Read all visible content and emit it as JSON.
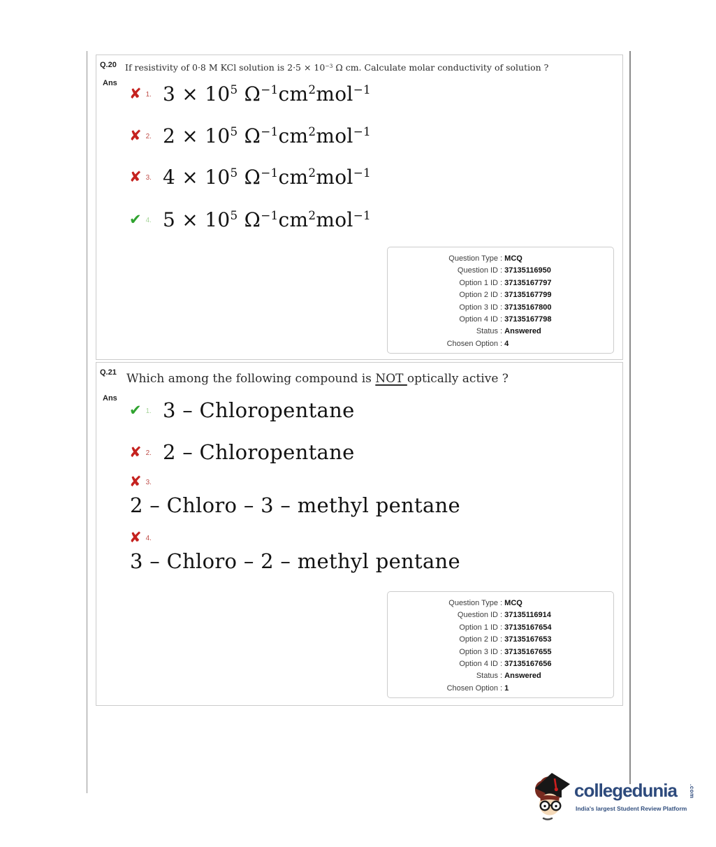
{
  "marks": {
    "wrong": "✘",
    "correct": "✔"
  },
  "colors": {
    "wrong_red": "#c5221f",
    "correct_green": "#2fa32f",
    "brand_navy": "#2d4a7c",
    "box_border": "#cbcbcb"
  },
  "questions": [
    {
      "number": "Q.20",
      "ans_label": "Ans",
      "text_segments": [
        {
          "t": "If resistivity of 0·8 M KCl solution is 2·5 × 10"
        },
        {
          "sup": "−3"
        },
        {
          "t": " Ω cm. Calculate molar conductivity of solution ?"
        }
      ],
      "options": [
        {
          "num": "1.",
          "mark": "wrong",
          "segments": [
            {
              "t": "3 × 10"
            },
            {
              "sup": "5"
            },
            {
              "t": " Ω"
            },
            {
              "sup": "−1"
            },
            {
              "t": "cm"
            },
            {
              "sup": "2"
            },
            {
              "t": "mol"
            },
            {
              "sup": "−1"
            }
          ]
        },
        {
          "num": "2.",
          "mark": "wrong",
          "segments": [
            {
              "t": "2 × 10"
            },
            {
              "sup": "5"
            },
            {
              "t": " Ω"
            },
            {
              "sup": "−1"
            },
            {
              "t": "cm"
            },
            {
              "sup": "2"
            },
            {
              "t": "mol"
            },
            {
              "sup": "−1"
            }
          ]
        },
        {
          "num": "3.",
          "mark": "wrong",
          "segments": [
            {
              "t": "4 × 10"
            },
            {
              "sup": "5"
            },
            {
              "t": " Ω"
            },
            {
              "sup": "−1"
            },
            {
              "t": "cm"
            },
            {
              "sup": "2"
            },
            {
              "t": "mol"
            },
            {
              "sup": "−1"
            }
          ]
        },
        {
          "num": "4.",
          "mark": "correct",
          "segments": [
            {
              "t": "5 × 10"
            },
            {
              "sup": "5"
            },
            {
              "t": " Ω"
            },
            {
              "sup": "−1"
            },
            {
              "t": "cm"
            },
            {
              "sup": "2"
            },
            {
              "t": "mol"
            },
            {
              "sup": "−1"
            }
          ]
        }
      ],
      "meta": [
        {
          "label": "Question Type",
          "value": "MCQ"
        },
        {
          "label": "Question ID",
          "value": "37135116950"
        },
        {
          "label": "Option 1 ID",
          "value": "37135167797"
        },
        {
          "label": "Option 2 ID",
          "value": "37135167799"
        },
        {
          "label": "Option 3 ID",
          "value": "37135167800"
        },
        {
          "label": "Option 4 ID",
          "value": "37135167798"
        },
        {
          "label": "Status",
          "value": "Answered"
        },
        {
          "label": "Chosen Option",
          "value": "4"
        }
      ]
    },
    {
      "number": "Q.21",
      "ans_label": "Ans",
      "text_segments": [
        {
          "t": "Which among the following compound is "
        },
        {
          "u": "NOT "
        },
        {
          "t": "optically active ?"
        }
      ],
      "options": [
        {
          "num": "1.",
          "mark": "correct",
          "segments": [
            {
              "t": "3 – Chloropentane"
            }
          ]
        },
        {
          "num": "2.",
          "mark": "wrong",
          "segments": [
            {
              "t": "2 – Chloropentane"
            }
          ]
        },
        {
          "num": "3.",
          "mark": "wrong",
          "segments": [
            {
              "t": "2 – Chloro – 3 – methyl pentane"
            }
          ]
        },
        {
          "num": "4.",
          "mark": "wrong",
          "segments": [
            {
              "t": "3 – Chloro – 2 – methyl pentane"
            }
          ]
        }
      ],
      "meta": [
        {
          "label": "Question Type",
          "value": "MCQ"
        },
        {
          "label": "Question ID",
          "value": "37135116914"
        },
        {
          "label": "Option 1 ID",
          "value": "37135167654"
        },
        {
          "label": "Option 2 ID",
          "value": "37135167653"
        },
        {
          "label": "Option 3 ID",
          "value": "37135167655"
        },
        {
          "label": "Option 4 ID",
          "value": "37135167656"
        },
        {
          "label": "Status",
          "value": "Answered"
        },
        {
          "label": "Chosen Option",
          "value": "1"
        }
      ]
    }
  ],
  "meta_colon": " : ",
  "logo": {
    "brand": "collegedunia",
    "tld": ".com",
    "tagline": "India's largest Student Review Platform"
  }
}
